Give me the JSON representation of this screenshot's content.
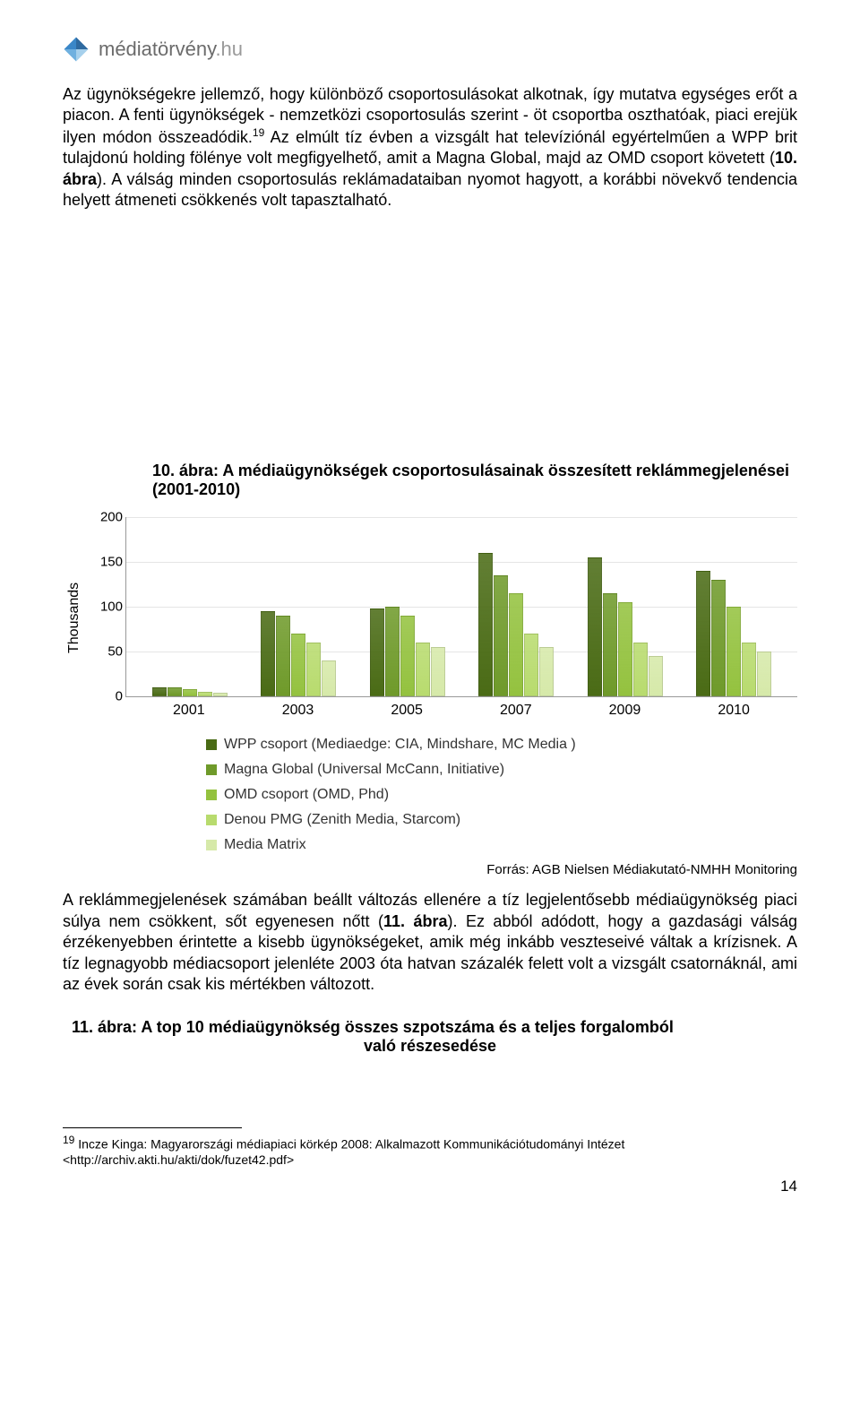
{
  "header": {
    "site_name_main": "médiatörvény",
    "site_name_tld": ".hu",
    "logo_colors": [
      "#2e6aa0",
      "#3a87c8",
      "#6fb0df",
      "#a6d0ec"
    ]
  },
  "para1": "Az ügynökségekre jellemző, hogy különböző csoportosulásokat alkotnak, így mutatva egységes erőt a piacon. A fenti ügynökségek - nemzetközi csoportosulás szerint - öt csoportba oszthatóak, piaci erejük ilyen módon összeadódik.",
  "sup1": "19",
  "para1b": " Az elmúlt tíz évben a vizsgált hat televíziónál egyértelműen a WPP brit tulajdonú holding fölénye volt megfigyelhető, amit a Magna Global, majd az OMD csoport követett (",
  "para1c_bold": "10. ábra",
  "para1d": "). A válság minden csoportosulás reklámadataiban nyomot hagyott, a korábbi növekvő tendencia helyett átmeneti csökkenés volt tapasztalható.",
  "figure10_title": "10. ábra:  A médiaügynökségek csoportosulásainak összesített reklámmegjelenései (2001-2010)",
  "chart": {
    "type": "bar",
    "ylabel": "Thousands",
    "ylim_max": 200,
    "ytick_step": 50,
    "yticks": [
      0,
      50,
      100,
      150,
      200
    ],
    "categories": [
      "2001",
      "2003",
      "2005",
      "2007",
      "2009",
      "2010"
    ],
    "series": [
      {
        "name": "WPP csoport (Mediaedge: CIA, Mindshare, MC Media )",
        "color": "#4a6b15",
        "values": [
          10,
          95,
          98,
          160,
          155,
          140
        ]
      },
      {
        "name": "Magna Global (Universal McCann, Initiative)",
        "color": "#6f9a2a",
        "values": [
          10,
          90,
          100,
          135,
          115,
          130
        ]
      },
      {
        "name": "OMD csoport (OMD, Phd)",
        "color": "#94c23f",
        "values": [
          8,
          70,
          90,
          115,
          105,
          100
        ]
      },
      {
        "name": "Denou PMG (Zenith Media, Starcom)",
        "color": "#b8db6e",
        "values": [
          5,
          60,
          60,
          70,
          60,
          60
        ]
      },
      {
        "name": "Media Matrix",
        "color": "#d6e9a9",
        "values": [
          4,
          40,
          55,
          55,
          45,
          50
        ]
      }
    ],
    "grid_color": "#e5e5e5",
    "axis_color": "#999999",
    "label_fontsize": 16
  },
  "source": "Forrás: AGB Nielsen Médiakutató-NMHH Monitoring",
  "para2a": "A reklámmegjelenések számában beállt változás ellenére a tíz legjelentősebb médiaügynökség piaci súlya nem csökkent, sőt egyenesen nőtt (",
  "para2b_bold": "11. ábra",
  "para2c": "). Ez abból adódott, hogy a gazdasági válság érzékenyebben érintette a kisebb ügynökségeket, amik még inkább veszteseivé váltak a krízisnek. A tíz legnagyobb médiacsoport jelenléte 2003 óta hatvan százalék felett volt a vizsgált csatornáknál, ami az évek során csak kis mértékben változott.",
  "figure11_title_l1": "11. ábra:  A top 10 médiaügynökség összes szpotszáma és a teljes forgalomból",
  "figure11_title_l2": "való részesedése",
  "footnote_num": "19",
  "footnote_text": " Incze Kinga: Magyarországi médiapiaci körkép 2008: Alkalmazott Kommunikációtudományi Intézet <http://archiv.akti.hu/akti/dok/fuzet42.pdf>",
  "pagenum": "14"
}
